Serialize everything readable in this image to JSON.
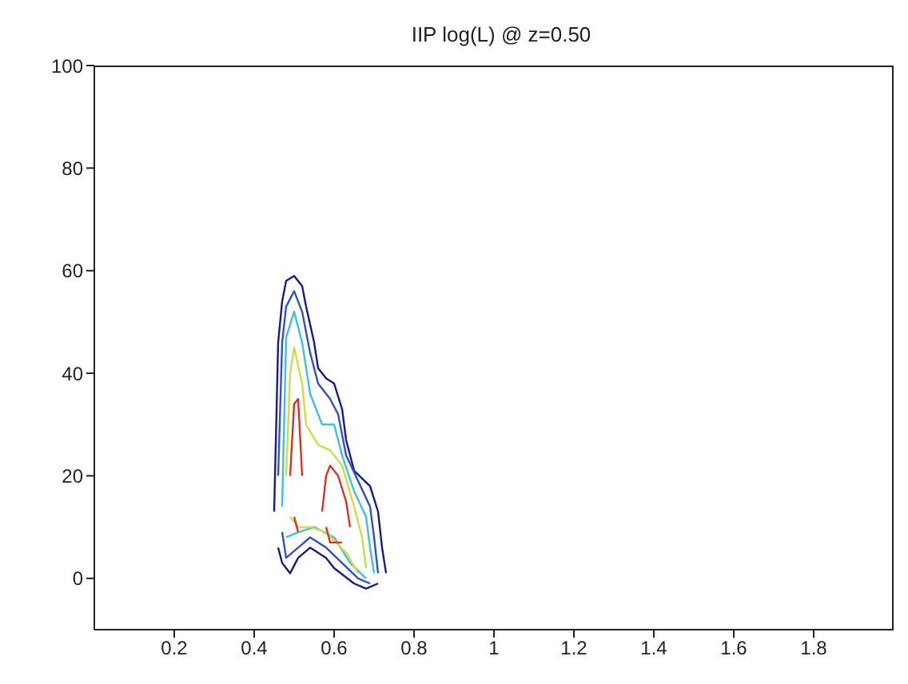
{
  "chart_data": {
    "type": "line",
    "title": "IIP log(L) @ z=0.50",
    "xlim": [
      0,
      2
    ],
    "xticks": [
      0.2,
      0.4,
      0.6,
      0.8,
      1,
      1.2,
      1.4,
      1.6,
      1.8
    ],
    "ylim": [
      -10,
      100
    ],
    "yticks": [
      0,
      20,
      40,
      60,
      80,
      100
    ],
    "grid": false,
    "marker": "none",
    "line_style": "solid",
    "series": [
      {
        "color": "#1a1a8a",
        "x": [
          0.45,
          0.46,
          0.47,
          0.48,
          0.5,
          0.52,
          0.53,
          0.55,
          0.56,
          0.58,
          0.6,
          0.62,
          0.63,
          0.65,
          0.69,
          0.71,
          0.72,
          0.73
        ],
        "values": [
          13,
          46,
          54,
          58,
          59,
          57,
          53,
          46,
          41,
          39,
          38,
          33,
          27,
          21,
          18,
          13,
          6,
          1
        ]
      },
      {
        "color": "#1a1a8a",
        "x": [
          0.46,
          0.47,
          0.49,
          0.51,
          0.54,
          0.58,
          0.6,
          0.65,
          0.68,
          0.71
        ],
        "values": [
          6,
          3,
          1,
          4,
          6,
          4,
          2,
          -1,
          -2,
          -1
        ]
      },
      {
        "color": "#3050d0",
        "x": [
          0.46,
          0.47,
          0.48,
          0.5,
          0.52,
          0.54,
          0.56,
          0.59,
          0.61,
          0.63,
          0.66,
          0.69,
          0.7,
          0.71
        ],
        "values": [
          20,
          46,
          53,
          56,
          52,
          44,
          38,
          35,
          32,
          24,
          19,
          14,
          8,
          1
        ]
      },
      {
        "color": "#3050d0",
        "x": [
          0.47,
          0.48,
          0.51,
          0.54,
          0.58,
          0.62,
          0.66,
          0.69
        ],
        "values": [
          9,
          4,
          6,
          8,
          6,
          3,
          0,
          -1
        ]
      },
      {
        "color": "#40c0e0",
        "x": [
          0.47,
          0.48,
          0.5,
          0.52,
          0.54,
          0.57,
          0.6,
          0.62,
          0.65,
          0.68,
          0.69,
          0.7
        ],
        "values": [
          14,
          47,
          52,
          46,
          36,
          30,
          30,
          24,
          17,
          12,
          6,
          1
        ]
      },
      {
        "color": "#40c0e0",
        "x": [
          0.48,
          0.51,
          0.55,
          0.6,
          0.64,
          0.68
        ],
        "values": [
          8,
          9,
          10,
          8,
          3,
          0
        ]
      },
      {
        "color": "#c8e040",
        "x": [
          0.48,
          0.49,
          0.5,
          0.52,
          0.53,
          0.56,
          0.59,
          0.62,
          0.65,
          0.67,
          0.68
        ],
        "values": [
          20,
          40,
          45,
          38,
          30,
          26,
          25,
          22,
          14,
          8,
          2
        ]
      },
      {
        "color": "#c8e040",
        "x": [
          0.49,
          0.51,
          0.54,
          0.58,
          0.63,
          0.66
        ],
        "values": [
          12,
          10,
          10,
          9,
          5,
          1
        ]
      },
      {
        "color": "#e03020",
        "x": [
          0.49,
          0.5,
          0.51,
          0.52
        ],
        "values": [
          20,
          34,
          35,
          20
        ]
      },
      {
        "color": "#e03020",
        "x": [
          0.5,
          0.51
        ],
        "values": [
          12,
          9
        ]
      },
      {
        "color": "#e03020",
        "x": [
          0.57,
          0.58,
          0.59,
          0.61,
          0.63,
          0.64
        ],
        "values": [
          13,
          20,
          22,
          20,
          15,
          10
        ]
      },
      {
        "color": "#e03020",
        "x": [
          0.58,
          0.59,
          0.62
        ],
        "values": [
          10,
          7,
          7
        ]
      }
    ]
  }
}
